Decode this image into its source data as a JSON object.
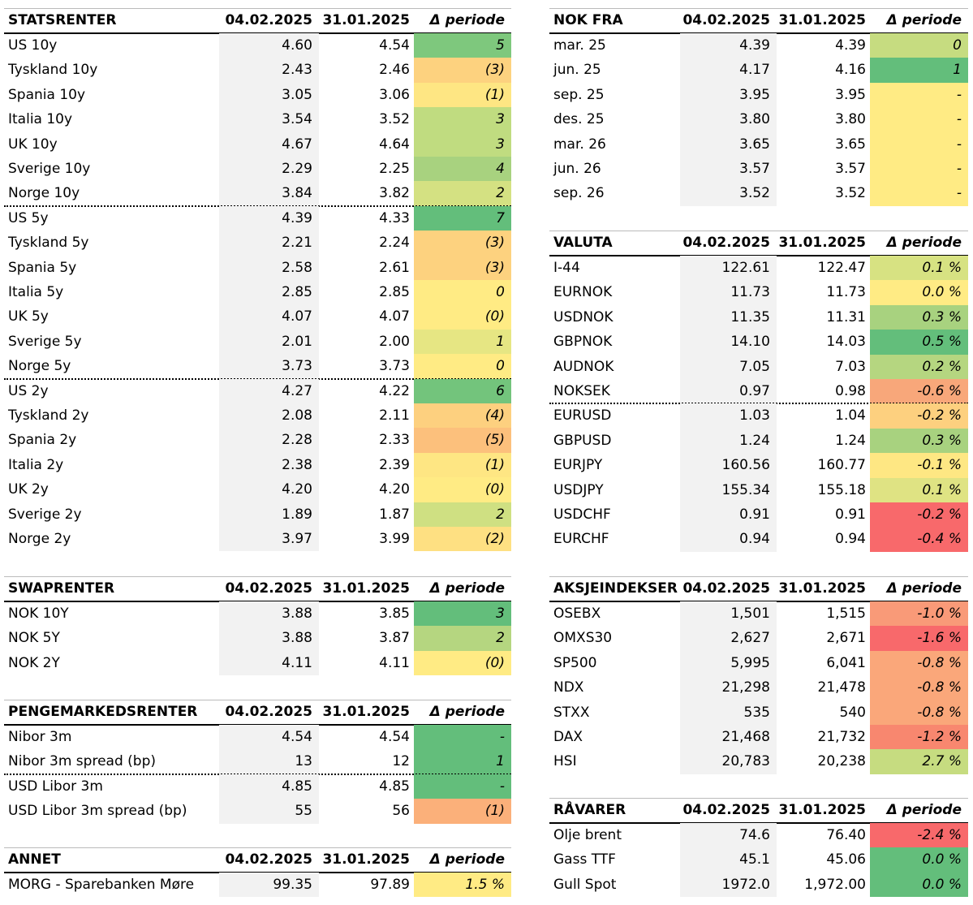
{
  "tables": [
    {
      "title": "STATSRENTER",
      "columns": [
        "04.02.2025",
        "31.01.2025",
        "Δ periode"
      ],
      "rows": [
        {
          "label": "US 10y",
          "a": "4.60",
          "b": "4.54",
          "change": "5",
          "color": "#7ec87d"
        },
        {
          "label": "Tyskland 10y",
          "a": "2.43",
          "b": "2.46",
          "change": "(3)",
          "color": "#fdd27f"
        },
        {
          "label": "Spania 10y",
          "a": "3.05",
          "b": "3.06",
          "change": "(1)",
          "color": "#fee683"
        },
        {
          "label": "Italia 10y",
          "a": "3.54",
          "b": "3.52",
          "change": "3",
          "color": "#c0dc80"
        },
        {
          "label": "UK 10y",
          "a": "4.67",
          "b": "4.64",
          "change": "3",
          "color": "#c0dc80"
        },
        {
          "label": "Sverige 10y",
          "a": "2.29",
          "b": "2.25",
          "change": "4",
          "color": "#a8d27f"
        },
        {
          "label": "Norge 10y",
          "a": "3.84",
          "b": "3.82",
          "change": "2",
          "color": "#d4e182",
          "dotted_line_below": true
        },
        {
          "label": "US 5y",
          "a": "4.39",
          "b": "4.33",
          "change": "7",
          "color": "#63be7b"
        },
        {
          "label": "Tyskland 5y",
          "a": "2.21",
          "b": "2.24",
          "change": "(3)",
          "color": "#fdd27f"
        },
        {
          "label": "Spania 5y",
          "a": "2.58",
          "b": "2.61",
          "change": "(3)",
          "color": "#fdd27f"
        },
        {
          "label": "Italia 5y",
          "a": "2.85",
          "b": "2.85",
          "change": "0",
          "color": "#ffeb84"
        },
        {
          "label": "UK 5y",
          "a": "4.07",
          "b": "4.07",
          "change": "(0)",
          "color": "#ffeb84"
        },
        {
          "label": "Sverige 5y",
          "a": "2.01",
          "b": "2.00",
          "change": "1",
          "color": "#e6e683"
        },
        {
          "label": "Norge 5y",
          "a": "3.73",
          "b": "3.73",
          "change": "0",
          "color": "#ffeb84",
          "dotted_line_below": true
        },
        {
          "label": "US 2y",
          "a": "4.27",
          "b": "4.22",
          "change": "6",
          "color": "#73c47c"
        },
        {
          "label": "Tyskland 2y",
          "a": "2.08",
          "b": "2.11",
          "change": "(4)",
          "color": "#fdd07f"
        },
        {
          "label": "Spania 2y",
          "a": "2.28",
          "b": "2.33",
          "change": "(5)",
          "color": "#fcc07c"
        },
        {
          "label": "Italia 2y",
          "a": "2.38",
          "b": "2.39",
          "change": "(1)",
          "color": "#fee683"
        },
        {
          "label": "UK 2y",
          "a": "4.20",
          "b": "4.20",
          "change": "(0)",
          "color": "#ffeb84"
        },
        {
          "label": "Sverige 2y",
          "a": "1.89",
          "b": "1.87",
          "change": "2",
          "color": "#cfe082"
        },
        {
          "label": "Norge 2y",
          "a": "3.97",
          "b": "3.99",
          "change": "(2)",
          "color": "#fee082"
        }
      ]
    },
    {
      "title": "SWAPRENTER",
      "columns": [
        "04.02.2025",
        "31.01.2025",
        "Δ periode"
      ],
      "rows": [
        {
          "label": "NOK 10Y",
          "a": "3.88",
          "b": "3.85",
          "change": "3",
          "color": "#63be7b"
        },
        {
          "label": "NOK 5Y",
          "a": "3.88",
          "b": "3.87",
          "change": "2",
          "color": "#b5d680"
        },
        {
          "label": "NOK 2Y",
          "a": "4.11",
          "b": "4.11",
          "change": "(0)",
          "color": "#ffeb84"
        }
      ]
    },
    {
      "title": "PENGEMARKEDSRENTER",
      "columns": [
        "04.02.2025",
        "31.01.2025",
        "Δ periode"
      ],
      "rows": [
        {
          "label": "Nibor 3m",
          "a": "4.54",
          "b": "4.54",
          "change": "-",
          "color": "#63be7b"
        },
        {
          "label": "Nibor 3m spread (bp)",
          "a": "13",
          "b": "12",
          "change": "1",
          "color": "#63be7b",
          "dotted_line_below": true
        },
        {
          "label": "USD Libor 3m",
          "a": "4.85",
          "b": "4.85",
          "change": "-",
          "color": "#63be7b"
        },
        {
          "label": "USD Libor 3m spread (bp)",
          "a": "55",
          "b": "56",
          "change": "(1)",
          "color": "#fbb07a"
        }
      ]
    },
    {
      "title": "ANNET",
      "columns": [
        "04.02.2025",
        "31.01.2025",
        "Δ periode"
      ],
      "rows": [
        {
          "label": "MORG - Sparebanken Møre",
          "a": "99.35",
          "b": "97.89",
          "change": "1.5 %",
          "color": "#ffeb84"
        }
      ]
    },
    {
      "title": "NOK FRA",
      "columns": [
        "04.02.2025",
        "31.01.2025",
        "Δ periode"
      ],
      "rows": [
        {
          "label": "mar. 25",
          "a": "4.39",
          "b": "4.39",
          "change": "0",
          "color": "#c6dc80"
        },
        {
          "label": "jun. 25",
          "a": "4.17",
          "b": "4.16",
          "change": "1",
          "color": "#63be7b"
        },
        {
          "label": "sep. 25",
          "a": "3.95",
          "b": "3.95",
          "change": "-",
          "color": "#ffeb84"
        },
        {
          "label": "des. 25",
          "a": "3.80",
          "b": "3.80",
          "change": "-",
          "color": "#ffeb84"
        },
        {
          "label": "mar. 26",
          "a": "3.65",
          "b": "3.65",
          "change": "-",
          "color": "#ffeb84"
        },
        {
          "label": "jun. 26",
          "a": "3.57",
          "b": "3.57",
          "change": "-",
          "color": "#ffeb84"
        },
        {
          "label": "sep. 26",
          "a": "3.52",
          "b": "3.52",
          "change": "-",
          "color": "#ffeb84"
        }
      ]
    },
    {
      "title": "VALUTA",
      "columns": [
        "04.02.2025",
        "31.01.2025",
        "Δ periode"
      ],
      "rows": [
        {
          "label": "I-44",
          "a": "122.61",
          "b": "122.47",
          "change": "0.1 %",
          "color": "#d7e282"
        },
        {
          "label": "EURNOK",
          "a": "11.73",
          "b": "11.73",
          "change": "0.0 %",
          "color": "#ffeb84"
        },
        {
          "label": "USDNOK",
          "a": "11.35",
          "b": "11.31",
          "change": "0.3 %",
          "color": "#a8d27f"
        },
        {
          "label": "GBPNOK",
          "a": "14.10",
          "b": "14.03",
          "change": "0.5 %",
          "color": "#63be7b"
        },
        {
          "label": "AUDNOK",
          "a": "7.05",
          "b": "7.03",
          "change": "0.2 %",
          "color": "#b5d680"
        },
        {
          "label": "NOKSEK",
          "a": "0.97",
          "b": "0.98",
          "change": "-0.6 %",
          "color": "#f8a77a",
          "dotted_line_below": true
        },
        {
          "label": "EURUSD",
          "a": "1.03",
          "b": "1.04",
          "change": "-0.2 %",
          "color": "#fdd07f"
        },
        {
          "label": "GBPUSD",
          "a": "1.24",
          "b": "1.24",
          "change": "0.3 %",
          "color": "#a8d27f"
        },
        {
          "label": "EURJPY",
          "a": "160.56",
          "b": "160.77",
          "change": "-0.1 %",
          "color": "#fee783"
        },
        {
          "label": "USDJPY",
          "a": "155.34",
          "b": "155.18",
          "change": "0.1 %",
          "color": "#dfe383"
        },
        {
          "label": "USDCHF",
          "a": "0.91",
          "b": "0.91",
          "change": "-0.2 %",
          "color": "#f8696b"
        },
        {
          "label": "EURCHF",
          "a": "0.94",
          "b": "0.94",
          "change": "-0.4 %",
          "color": "#f8696b"
        }
      ]
    },
    {
      "title": "AKSJEINDEKSER",
      "columns": [
        "04.02.2025",
        "31.01.2025",
        "Δ periode"
      ],
      "rows": [
        {
          "label": "OSEBX",
          "a": "1,501",
          "b": "1,515",
          "change": "-1.0 %",
          "color": "#f99a78"
        },
        {
          "label": "OMXS30",
          "a": "2,627",
          "b": "2,671",
          "change": "-1.6 %",
          "color": "#f8696b"
        },
        {
          "label": "SP500",
          "a": "5,995",
          "b": "6,041",
          "change": "-0.8 %",
          "color": "#faa77a"
        },
        {
          "label": "NDX",
          "a": "21,298",
          "b": "21,478",
          "change": "-0.8 %",
          "color": "#faa77a"
        },
        {
          "label": "STXX",
          "a": "535",
          "b": "540",
          "change": "-0.8 %",
          "color": "#faa77a"
        },
        {
          "label": "DAX",
          "a": "21,468",
          "b": "21,732",
          "change": "-1.2 %",
          "color": "#f8876f"
        },
        {
          "label": "HSI",
          "a": "20,783",
          "b": "20,238",
          "change": "2.7 %",
          "color": "#c6dc80"
        }
      ]
    },
    {
      "title": "RÅVARER",
      "columns": [
        "04.02.2025",
        "31.01.2025",
        "Δ periode"
      ],
      "rows": [
        {
          "label": "Olje brent",
          "a": "74.6",
          "b": "76.40",
          "change": "-2.4 %",
          "color": "#f8696b"
        },
        {
          "label": "Gass TTF",
          "a": "45.1",
          "b": "45.06",
          "change": "0.0 %",
          "color": "#63be7b"
        },
        {
          "label": "Gull Spot",
          "a": "1972.0",
          "b": "1,972.00",
          "change": "0.0 %",
          "color": "#63be7b"
        }
      ]
    }
  ]
}
